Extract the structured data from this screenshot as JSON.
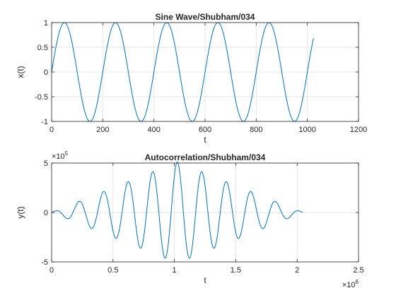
{
  "chart_data": [
    {
      "type": "line",
      "title": "Sine Wave/Shubham/034",
      "xlabel": "t",
      "ylabel": "x(t)",
      "xlim": [
        0,
        1200
      ],
      "ylim": [
        -1,
        1
      ],
      "xticks": [
        0,
        200,
        400,
        600,
        800,
        1000,
        1200
      ],
      "xtick_labels": [
        "0",
        "200",
        "400",
        "600",
        "800",
        "1000",
        "1200"
      ],
      "yticks": [
        -1,
        -0.5,
        0,
        0.5,
        1
      ],
      "ytick_labels": [
        "-1",
        "-0.5",
        "0",
        "0.5",
        "1"
      ],
      "grid": true,
      "color": "#0072BD",
      "series": [
        {
          "x_start": 0,
          "x_end": 1024,
          "period": 200,
          "amplitude": 1,
          "peaks": [
            [
              50,
              1
            ],
            [
              250,
              1
            ],
            [
              450,
              1
            ],
            [
              650,
              1
            ],
            [
              850,
              1
            ]
          ],
          "troughs": [
            [
              150,
              -1
            ],
            [
              350,
              -1
            ],
            [
              550,
              -1
            ],
            [
              750,
              -1
            ],
            [
              950,
              -1
            ]
          ],
          "end_value": 0.69
        }
      ]
    },
    {
      "type": "line",
      "title": "Autocorrelation/Shubham/034",
      "xlabel": "t",
      "ylabel": "y(t)",
      "xlim": [
        0,
        2500000
      ],
      "ylim": [
        -500000,
        500000
      ],
      "x_multiplier": "×10",
      "x_exponent": "6",
      "y_multiplier": "×10",
      "y_exponent": "5",
      "xticks": [
        0,
        500000,
        1000000,
        1500000,
        2000000,
        2500000
      ],
      "xtick_labels": [
        "0",
        "0.5",
        "1",
        "1.5",
        "2",
        "2.5"
      ],
      "yticks": [
        -500000,
        0,
        500000
      ],
      "ytick_labels": [
        "-5",
        "0",
        "5"
      ],
      "grid": true,
      "color": "#0072BD",
      "series": [
        {
          "x_start": 0,
          "x_end": 2047000,
          "center": 1023500,
          "period": 200000,
          "peak": 511500,
          "envelope": "triangular"
        }
      ]
    }
  ]
}
